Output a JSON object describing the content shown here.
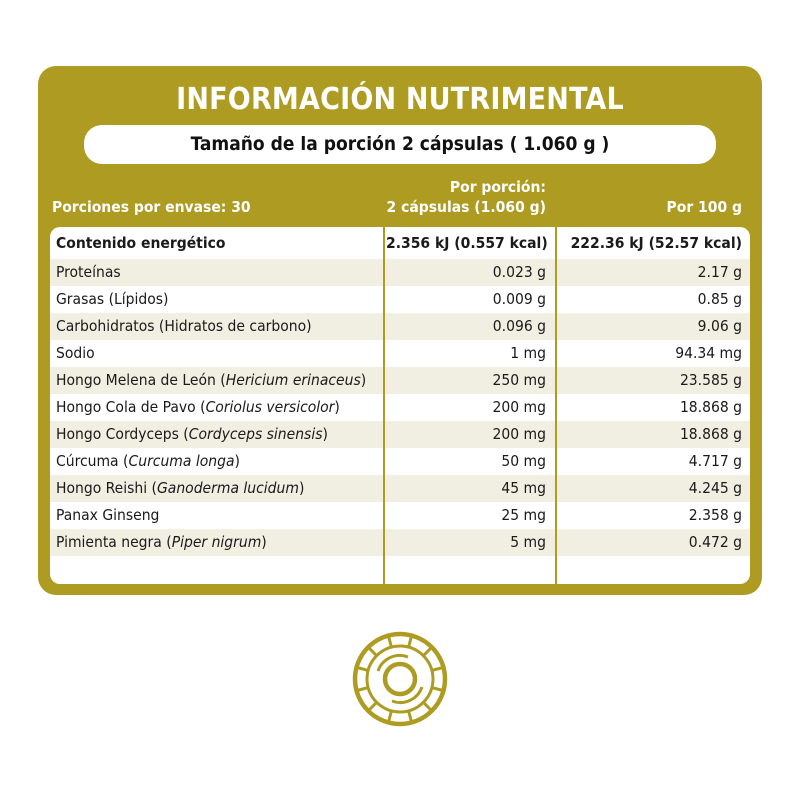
{
  "header": {
    "title": "INFORMACIÓN NUTRIMENTAL",
    "serving_size": "Tamaño de la porción 2 cápsulas ( 1.060 g )"
  },
  "columns": {
    "portions": "Porciones por envase: 30",
    "per_serving_line1": "Por porción:",
    "per_serving_line2": "2 cápsulas (1.060 g)",
    "per_100": "Por 100 g"
  },
  "rows": [
    {
      "name": "Contenido energético",
      "sci": "",
      "close": "",
      "per_serving": "2.356 kJ (0.557 kcal)",
      "per_100": "222.36 kJ (52.57 kcal)"
    },
    {
      "name": "Proteínas",
      "sci": "",
      "close": "",
      "per_serving": "0.023 g",
      "per_100": "2.17 g"
    },
    {
      "name": "Grasas (Lípidos)",
      "sci": "",
      "close": "",
      "per_serving": "0.009 g",
      "per_100": "0.85 g"
    },
    {
      "name": "Carbohidratos (Hidratos de carbono)",
      "sci": "",
      "close": "",
      "per_serving": "0.096 g",
      "per_100": "9.06 g"
    },
    {
      "name": "Sodio",
      "sci": "",
      "close": "",
      "per_serving": "1 mg",
      "per_100": "94.34 mg"
    },
    {
      "name": "Hongo Melena de León (",
      "sci": "Hericium erinaceus",
      "close": ")",
      "per_serving": "250 mg",
      "per_100": "23.585 g"
    },
    {
      "name": "Hongo Cola de Pavo (",
      "sci": "Coriolus versicolor",
      "close": ")",
      "per_serving": "200 mg",
      "per_100": "18.868 g"
    },
    {
      "name": "Hongo Cordyceps (",
      "sci": "Cordyceps sinensis",
      "close": ")",
      "per_serving": "200 mg",
      "per_100": "18.868 g"
    },
    {
      "name": "Cúrcuma (",
      "sci": "Curcuma longa",
      "close": ")",
      "per_serving": "50 mg",
      "per_100": "4.717 g"
    },
    {
      "name": "Hongo Reishi (",
      "sci": "Ganoderma lucidum",
      "close": ")",
      "per_serving": "45 mg",
      "per_100": "4.245 g"
    },
    {
      "name": "Panax Ginseng",
      "sci": "",
      "close": "",
      "per_serving": "25 mg",
      "per_100": "2.358 g"
    },
    {
      "name": "Pimienta negra (",
      "sci": "Piper nigrum",
      "close": ")",
      "per_serving": "5 mg",
      "per_100": "0.472 g"
    }
  ],
  "colors": {
    "brand_olive": "#ad9b22",
    "row_shade": "#f1efe2",
    "text_dark": "#1a1a1a"
  },
  "icons": {
    "logo": "circular-segmented-emblem-icon"
  }
}
